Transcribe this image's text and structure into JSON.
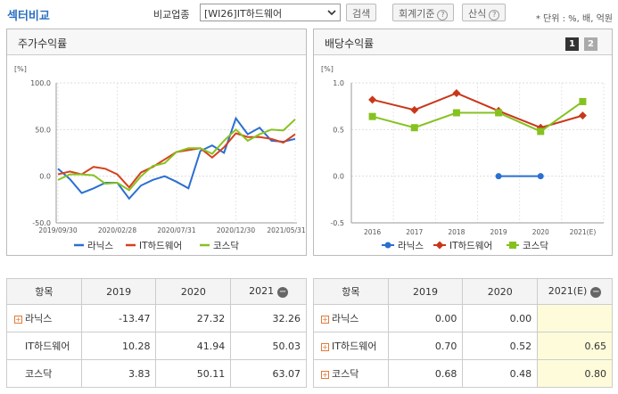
{
  "header": {
    "title": "섹터비교",
    "compare_label": "비교업종",
    "industry_value": "[WI26]IT하드웨어",
    "search_button": "검색",
    "accounting_button": "회계기준",
    "calc_button": "산식",
    "unit_text": "* 단위 : %, 배, 억원"
  },
  "left_panel": {
    "title": "주가수익률",
    "unit": "[%]"
  },
  "right_panel": {
    "title": "배당수익률",
    "unit": "[%]",
    "page1": "1",
    "page2": "2"
  },
  "chart_data": [
    {
      "type": "line",
      "title": "주가수익률",
      "ylabel": "[%]",
      "ylim": [
        -50,
        100
      ],
      "yticks": [
        "100.0",
        "50.0",
        "0.0",
        "-50.0"
      ],
      "xticks": [
        "2019/09/30",
        "2020/02/28",
        "2020/07/31",
        "2020/12/30",
        "2021/05/31"
      ],
      "x": [
        "2019/09",
        "2019/10",
        "2019/11",
        "2019/12",
        "2020/01",
        "2020/02",
        "2020/03",
        "2020/04",
        "2020/05",
        "2020/06",
        "2020/07",
        "2020/08",
        "2020/09",
        "2020/10",
        "2020/11",
        "2020/12",
        "2021/01",
        "2021/02",
        "2021/03",
        "2021/04",
        "2021/05"
      ],
      "series": [
        {
          "name": "라닉스",
          "color": "#2b6fd1",
          "values": [
            8,
            -3,
            -18,
            -13,
            -7,
            -7,
            -24,
            -10,
            -4,
            0,
            -6,
            -13,
            27,
            33,
            25,
            62,
            45,
            52,
            38,
            37,
            40
          ]
        },
        {
          "name": "IT하드웨어",
          "color": "#d6401d",
          "values": [
            2,
            5,
            2,
            10,
            8,
            2,
            -12,
            4,
            10,
            18,
            26,
            28,
            30,
            20,
            31,
            46,
            42,
            42,
            40,
            36,
            45
          ]
        },
        {
          "name": "코스닥",
          "color": "#86c21f",
          "values": [
            -4,
            2,
            2,
            1,
            -8,
            -7,
            -15,
            0,
            11,
            14,
            26,
            30,
            30,
            24,
            38,
            50,
            38,
            45,
            50,
            49,
            61
          ]
        }
      ]
    },
    {
      "type": "line",
      "title": "배당수익률",
      "ylabel": "[%]",
      "ylim": [
        -0.5,
        1.0
      ],
      "yticks": [
        "1.0",
        "0.5",
        "0.0",
        "-0.5"
      ],
      "categories": [
        "2016",
        "2017",
        "2018",
        "2019",
        "2020",
        "2021(E)"
      ],
      "series": [
        {
          "name": "라닉스",
          "color": "#2b6fd1",
          "marker": "circle",
          "values": [
            null,
            null,
            null,
            0.0,
            0.0,
            null
          ]
        },
        {
          "name": "IT하드웨어",
          "color": "#c8371a",
          "marker": "diamond",
          "values": [
            0.82,
            0.71,
            0.89,
            0.7,
            0.52,
            0.65
          ]
        },
        {
          "name": "코스닥",
          "color": "#86c21f",
          "marker": "square",
          "values": [
            0.64,
            0.52,
            0.68,
            0.68,
            0.48,
            0.8
          ]
        }
      ]
    }
  ],
  "left_table": {
    "headers": [
      "항목",
      "2019",
      "2020",
      "2021"
    ],
    "rows": [
      {
        "name": "라닉스",
        "expand": true,
        "v": [
          "-13.47",
          "27.32",
          "32.26"
        ]
      },
      {
        "name": "IT하드웨어",
        "expand": false,
        "v": [
          "10.28",
          "41.94",
          "50.03"
        ]
      },
      {
        "name": "코스닥",
        "expand": false,
        "v": [
          "3.83",
          "50.11",
          "63.07"
        ]
      }
    ]
  },
  "right_table": {
    "headers": [
      "항목",
      "2019",
      "2020",
      "2021(E)"
    ],
    "rows": [
      {
        "name": "라닉스",
        "v": [
          "0.00",
          "0.00",
          ""
        ]
      },
      {
        "name": "IT하드웨어",
        "v": [
          "0.70",
          "0.52",
          "0.65"
        ]
      },
      {
        "name": "코스닥",
        "v": [
          "0.68",
          "0.48",
          "0.80"
        ]
      }
    ]
  }
}
